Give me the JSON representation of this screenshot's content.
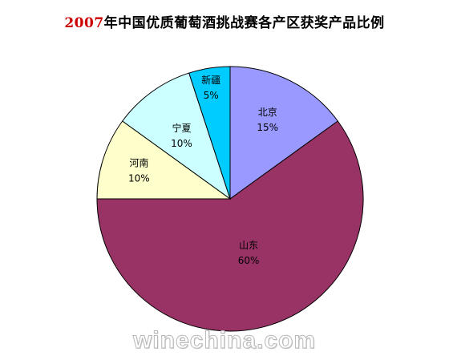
{
  "chart_data": {
    "type": "pie",
    "title_year": "2007",
    "title_rest": "年中国优质葡萄酒挑战赛各产区获奖产品比例",
    "slices": [
      {
        "label": "北京",
        "percent_label": "15%",
        "value": 15,
        "color": "#9999ff"
      },
      {
        "label": "山东",
        "percent_label": "60%",
        "value": 60,
        "color": "#993366"
      },
      {
        "label": "河南",
        "percent_label": "10%",
        "value": 10,
        "color": "#ffffcc"
      },
      {
        "label": "宁夏",
        "percent_label": "10%",
        "value": 10,
        "color": "#ccffff"
      },
      {
        "label": "新疆",
        "percent_label": "5%",
        "value": 5,
        "color": "#00ccff"
      }
    ]
  },
  "watermark": "winechina.com"
}
